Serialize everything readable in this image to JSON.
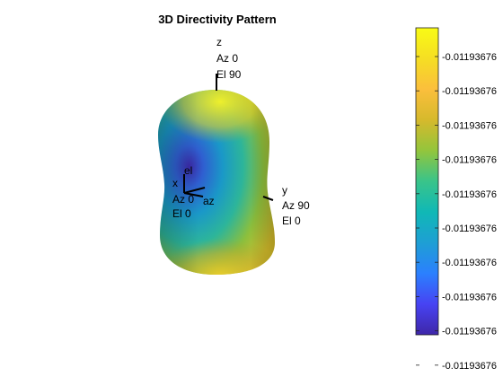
{
  "chart_data": {
    "type": "surface3d",
    "title": "3D Directivity Pattern",
    "axes": {
      "x": {
        "letter": "x",
        "az_text": "Az 0",
        "el_text": "El 0"
      },
      "y": {
        "letter": "y",
        "az_text": "Az 90",
        "el_text": "El 0"
      },
      "z": {
        "letter": "z",
        "az_text": "Az 0",
        "el_text": "El 90"
      },
      "local": {
        "el": "el",
        "az": "az"
      }
    },
    "colorbar": {
      "ticks": [
        "-0.01193676",
        "-0.01193676",
        "-0.01193676",
        "-0.01193676",
        "-0.01193676",
        "-0.01193676",
        "-0.01193676",
        "-0.01193676",
        "-0.01193676",
        "-0.01193676"
      ],
      "colormap": [
        "#3e26a8",
        "#4743f3",
        "#2b80fe",
        "#1e9fd4",
        "#10b8b6",
        "#39c48a",
        "#93c53c",
        "#d6b92c",
        "#fbbf3c",
        "#f5de23",
        "#f9fb15"
      ]
    }
  }
}
